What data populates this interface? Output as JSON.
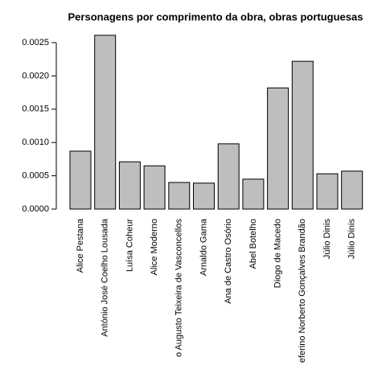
{
  "chart_data": {
    "type": "bar",
    "title": "Personagens por comprimento da obra, obras portuguesas",
    "categories": [
      "Alice Pestana",
      "António José Coelho Lousada",
      "Luísa Coheur",
      "Alice Moderno",
      "o Augusto Teixeira de Vasconcellos",
      "Arnaldo Gama",
      "Ana de Castro Osório",
      "Abel Botelho",
      "Diogo de Macedo",
      "eferino Norberto Gonçalves Brandão",
      "Júlio Dinis",
      "Júlio Dinis"
    ],
    "values": [
      0.00087,
      0.00261,
      0.00071,
      0.00065,
      0.0004,
      0.00039,
      0.00098,
      0.00045,
      0.00182,
      0.00222,
      0.00053,
      0.00057
    ],
    "color": "#bebebe",
    "ylim": [
      0,
      0.0025
    ],
    "yticks": [
      {
        "value": 0,
        "label": "0.0000"
      },
      {
        "value": 0.0005,
        "label": "0.0005"
      },
      {
        "value": 0.001,
        "label": "0.0010"
      },
      {
        "value": 0.0015,
        "label": "0.0015"
      },
      {
        "value": 0.002,
        "label": "0.0020"
      },
      {
        "value": 0.0025,
        "label": "0.0025"
      }
    ],
    "grid": false
  }
}
